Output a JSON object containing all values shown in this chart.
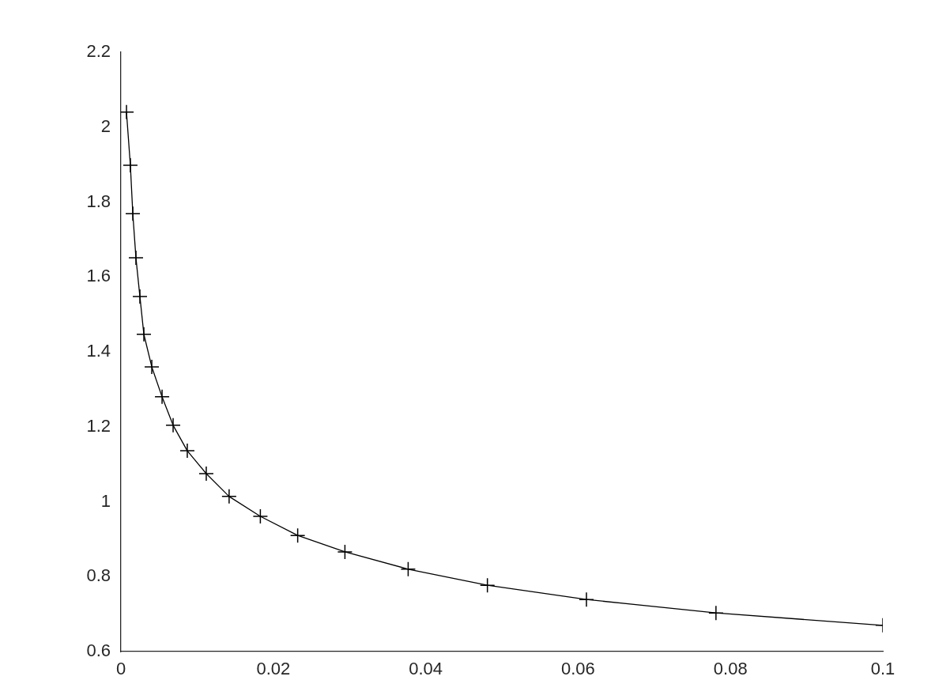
{
  "chart_data": {
    "type": "line",
    "x": [
      0.00073,
      0.00124,
      0.00156,
      0.00197,
      0.00249,
      0.00301,
      0.00405,
      0.0054,
      0.00685,
      0.00871,
      0.0112,
      0.0142,
      0.0183,
      0.0232,
      0.0294,
      0.0377,
      0.0481,
      0.0611,
      0.0781,
      0.1
    ],
    "series": [
      {
        "color": "#000000",
        "values": [
          2.04,
          1.898,
          1.769,
          1.651,
          1.548,
          1.447,
          1.36,
          1.28,
          1.204,
          1.136,
          1.075,
          1.014,
          0.961,
          0.91,
          0.866,
          0.82,
          0.777,
          0.739,
          0.703,
          0.67
        ]
      }
    ],
    "xlim": [
      0,
      0.1
    ],
    "xticks": [
      0,
      0.02,
      0.04,
      0.06,
      0.08,
      0.1
    ],
    "ylim": [
      0.6,
      2.2
    ],
    "yticks": [
      0.6,
      0.8,
      1,
      1.2,
      1.4,
      1.6,
      1.8,
      2,
      2.2
    ],
    "grid": false,
    "legend": false,
    "marker": "cross",
    "line_style": "solid"
  }
}
